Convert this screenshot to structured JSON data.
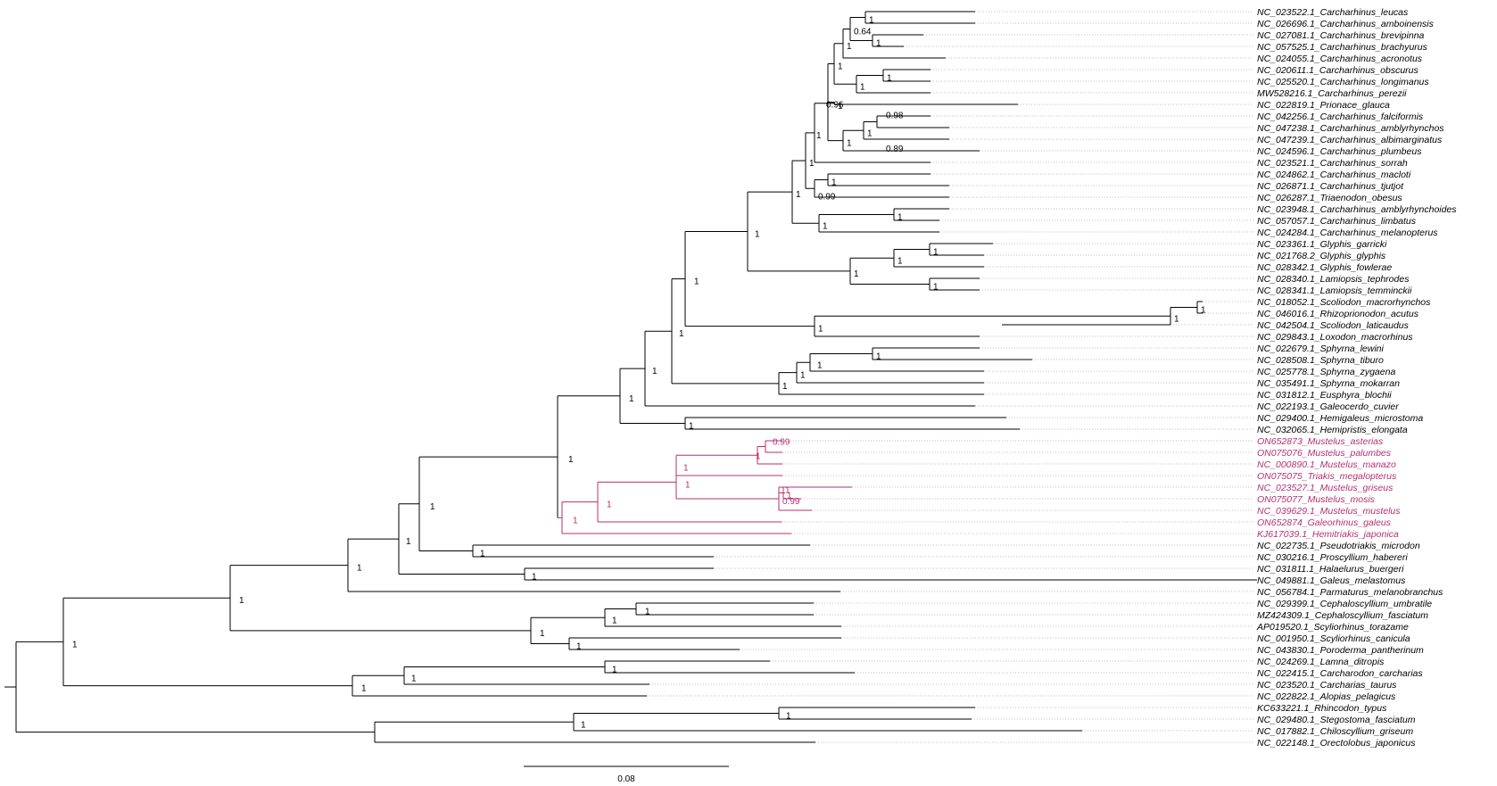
{
  "colors": {
    "default": "#000000",
    "highlight": "#b5306f",
    "guide": "#aaaaaa"
  },
  "scale_bar": {
    "label": "0.08"
  },
  "tips": [
    {
      "id": "t0",
      "label": "NC_023522.1_Carcharhinus_leucas"
    },
    {
      "id": "t1",
      "label": "NC_026696.1_Carcharhinus_amboinensis"
    },
    {
      "id": "t2",
      "label": "NC_027081.1_Carcharhinus_brevipinna"
    },
    {
      "id": "t3",
      "label": "NC_057525.1_Carcharhinus_brachyurus"
    },
    {
      "id": "t4",
      "label": "NC_024055.1_Carcharhinus_acronotus"
    },
    {
      "id": "t5",
      "label": "NC_020611.1_Carcharhinus_obscurus"
    },
    {
      "id": "t6",
      "label": "NC_025520.1_Carcharhinus_longimanus"
    },
    {
      "id": "t7",
      "label": "MW528216.1_Carcharhinus_perezii"
    },
    {
      "id": "t8",
      "label": "NC_022819.1_Prionace_glauca"
    },
    {
      "id": "t9",
      "label": "NC_042256.1_Carcharhinus_falciformis"
    },
    {
      "id": "t10",
      "label": "NC_047238.1_Carcharhinus_amblyrhynchos"
    },
    {
      "id": "t11",
      "label": "NC_047239.1_Carcharhinus_albimarginatus"
    },
    {
      "id": "t12",
      "label": "NC_024596.1_Carcharhinus_plumbeus"
    },
    {
      "id": "t13",
      "label": "NC_023521.1_Carcharhinus_sorrah"
    },
    {
      "id": "t14",
      "label": "NC_024862.1_Carcharhinus_macloti"
    },
    {
      "id": "t15",
      "label": "NC_026871.1_Carcharhinus_tjutjot"
    },
    {
      "id": "t16",
      "label": "NC_026287.1_Triaenodon_obesus"
    },
    {
      "id": "t17",
      "label": "NC_023948.1_Carcharhinus_amblyrhynchoides"
    },
    {
      "id": "t18",
      "label": "NC_057057.1_Carcharhinus_limbatus"
    },
    {
      "id": "t19",
      "label": "NC_024284.1_Carcharhinus_melanopterus"
    },
    {
      "id": "t20",
      "label": "NC_023361.1_Glyphis_garricki"
    },
    {
      "id": "t21",
      "label": "NC_021768.2_Glyphis_glyphis"
    },
    {
      "id": "t22",
      "label": "NC_028342.1_Glyphis_fowlerae"
    },
    {
      "id": "t23",
      "label": "NC_028340.1_Lamiopsis_tephrodes"
    },
    {
      "id": "t24",
      "label": "NC_028341.1_Lamiopsis_temminckii"
    },
    {
      "id": "t25",
      "label": "NC_018052.1_Scoliodon_macrorhynchos"
    },
    {
      "id": "t26",
      "label": "NC_046016.1_Rhizoprionodon_acutus"
    },
    {
      "id": "t27",
      "label": "NC_042504.1_Scoliodon_laticaudus"
    },
    {
      "id": "t28",
      "label": "NC_029843.1_Loxodon_macrorhinus"
    },
    {
      "id": "t29",
      "label": "NC_022679.1_Sphyrna_lewini"
    },
    {
      "id": "t30",
      "label": "NC_028508.1_Sphyrna_tiburo"
    },
    {
      "id": "t31",
      "label": "NC_025778.1_Sphyrna_zygaena"
    },
    {
      "id": "t32",
      "label": "NC_035491.1_Sphyrna_mokarran"
    },
    {
      "id": "t33",
      "label": "NC_031812.1_Eusphyra_blochii"
    },
    {
      "id": "t34",
      "label": "NC_022193.1_Galeocerdo_cuvier"
    },
    {
      "id": "t35",
      "label": "NC_029400.1_Hemigaleus_microstoma"
    },
    {
      "id": "t36",
      "label": "NC_032065.1_Hemipristis_elongata"
    },
    {
      "id": "t37",
      "label": "ON652873_Mustelus_asterias",
      "hl": true
    },
    {
      "id": "t38",
      "label": "ON075076_Mustelus_palumbes",
      "hl": true
    },
    {
      "id": "t39",
      "label": "NC_000890.1_Mustelus_manazo",
      "hl": true
    },
    {
      "id": "t40",
      "label": "ON075075_Triakis_megalopterus",
      "hl": true
    },
    {
      "id": "t41",
      "label": "NC_023527.1_Mustelus_griseus",
      "hl": true
    },
    {
      "id": "t42",
      "label": "ON075077_Mustelus_mosis",
      "hl": true
    },
    {
      "id": "t43",
      "label": "NC_039629.1_Mustelus_mustelus",
      "hl": true
    },
    {
      "id": "t44",
      "label": "ON652874_Galeorhinus_galeus",
      "hl": true
    },
    {
      "id": "t45",
      "label": "KJ617039.1_Hemitriakis_japonica",
      "hl": true
    },
    {
      "id": "t46",
      "label": "NC_022735.1_Pseudotriakis_microdon"
    },
    {
      "id": "t47",
      "label": "NC_030216.1_Proscyllium_habereri"
    },
    {
      "id": "t48",
      "label": "NC_031811.1_Halaelurus_buergeri"
    },
    {
      "id": "t49",
      "label": "NC_049881.1_Galeus_melastomus"
    },
    {
      "id": "t50",
      "label": "NC_056784.1_Parmaturus_melanobranchus"
    },
    {
      "id": "t51",
      "label": "NC_029399.1_Cephaloscyllium_umbratile"
    },
    {
      "id": "t52",
      "label": "MZ424309.1_Cephaloscyllium_fasciatum"
    },
    {
      "id": "t53",
      "label": "AP019520.1_Scyliorhinus_torazame"
    },
    {
      "id": "t54",
      "label": "NC_001950.1_Scyliorhinus_canicula"
    },
    {
      "id": "t55",
      "label": "NC_043830.1_Poroderma_pantherinum"
    },
    {
      "id": "t56",
      "label": "NC_024269.1_Lamna_ditropis"
    },
    {
      "id": "t57",
      "label": "NC_022415.1_Carcharodon_carcharias"
    },
    {
      "id": "t58",
      "label": "NC_023520.1_Carcharias_taurus"
    },
    {
      "id": "t59",
      "label": "NC_022822.1_Alopias_pelagicus"
    },
    {
      "id": "t60",
      "label": "KC633221.1_Rhincodon_typus"
    },
    {
      "id": "t61",
      "label": "NC_029480.1_Stegostoma_fasciatum"
    },
    {
      "id": "t62",
      "label": "NC_017882.1_Chiloscyllium_griseum"
    },
    {
      "id": "t63",
      "label": "NC_022148.1_Orectolobus_japonicus"
    }
  ],
  "supports": [
    {
      "id": "n1",
      "label": "1"
    },
    {
      "id": "n2",
      "label": "0.64"
    },
    {
      "id": "n3",
      "label": "1"
    },
    {
      "id": "n4",
      "label": "1"
    },
    {
      "id": "n5",
      "label": "1"
    },
    {
      "id": "n6",
      "label": "1"
    },
    {
      "id": "n7",
      "label": "1"
    },
    {
      "id": "n8",
      "label": "0.98"
    },
    {
      "id": "n9",
      "label": "0.89"
    },
    {
      "id": "n10",
      "label": "1"
    },
    {
      "id": "n11",
      "label": "1"
    },
    {
      "id": "n12",
      "label": "0.96"
    },
    {
      "id": "n13",
      "label": "1"
    },
    {
      "id": "n14",
      "label": "1"
    },
    {
      "id": "n15",
      "label": "0.99"
    },
    {
      "id": "n16",
      "label": "1"
    },
    {
      "id": "n17",
      "label": "1"
    },
    {
      "id": "n18",
      "label": "1"
    },
    {
      "id": "n19",
      "label": "1"
    },
    {
      "id": "n20",
      "label": "1"
    },
    {
      "id": "n21",
      "label": "1"
    },
    {
      "id": "n22",
      "label": "1"
    },
    {
      "id": "n23",
      "label": "1"
    },
    {
      "id": "n24",
      "label": "1"
    },
    {
      "id": "n25",
      "label": "1"
    },
    {
      "id": "n26",
      "label": "1"
    },
    {
      "id": "n27",
      "label": "1"
    },
    {
      "id": "n28",
      "label": "1"
    },
    {
      "id": "n29",
      "label": "1"
    },
    {
      "id": "n30",
      "label": "1"
    },
    {
      "id": "n31",
      "label": "1"
    },
    {
      "id": "n32",
      "label": "1"
    },
    {
      "id": "n33",
      "label": "1"
    },
    {
      "id": "n34",
      "label": "1"
    },
    {
      "id": "n35",
      "label": "1"
    },
    {
      "id": "n36",
      "label": "1"
    },
    {
      "id": "n37",
      "label": "1"
    },
    {
      "id": "n38",
      "label": "0.99"
    },
    {
      "id": "n39",
      "label": "1"
    },
    {
      "id": "n40",
      "label": "1"
    },
    {
      "id": "n41",
      "label": "1"
    },
    {
      "id": "n42",
      "label": "0.99"
    },
    {
      "id": "n43",
      "label": "1"
    },
    {
      "id": "n44",
      "label": "1"
    },
    {
      "id": "n45",
      "label": "1"
    },
    {
      "id": "n46",
      "label": "1"
    },
    {
      "id": "n47",
      "label": "1"
    },
    {
      "id": "n48",
      "label": "1"
    },
    {
      "id": "n49",
      "label": "1"
    },
    {
      "id": "n50",
      "label": "1"
    },
    {
      "id": "n51",
      "label": "1"
    },
    {
      "id": "n52",
      "label": "1"
    },
    {
      "id": "n53",
      "label": "1"
    },
    {
      "id": "n54",
      "label": "1"
    },
    {
      "id": "n55",
      "label": "1"
    },
    {
      "id": "n56",
      "label": "1"
    },
    {
      "id": "n57",
      "label": "1"
    },
    {
      "id": "n58",
      "label": "1"
    },
    {
      "id": "n59",
      "label": "1"
    },
    {
      "id": "n60",
      "label": "1"
    },
    {
      "id": "n61",
      "label": "1"
    },
    {
      "id": "n62",
      "label": "1"
    },
    {
      "id": "n63",
      "label": "1"
    }
  ]
}
